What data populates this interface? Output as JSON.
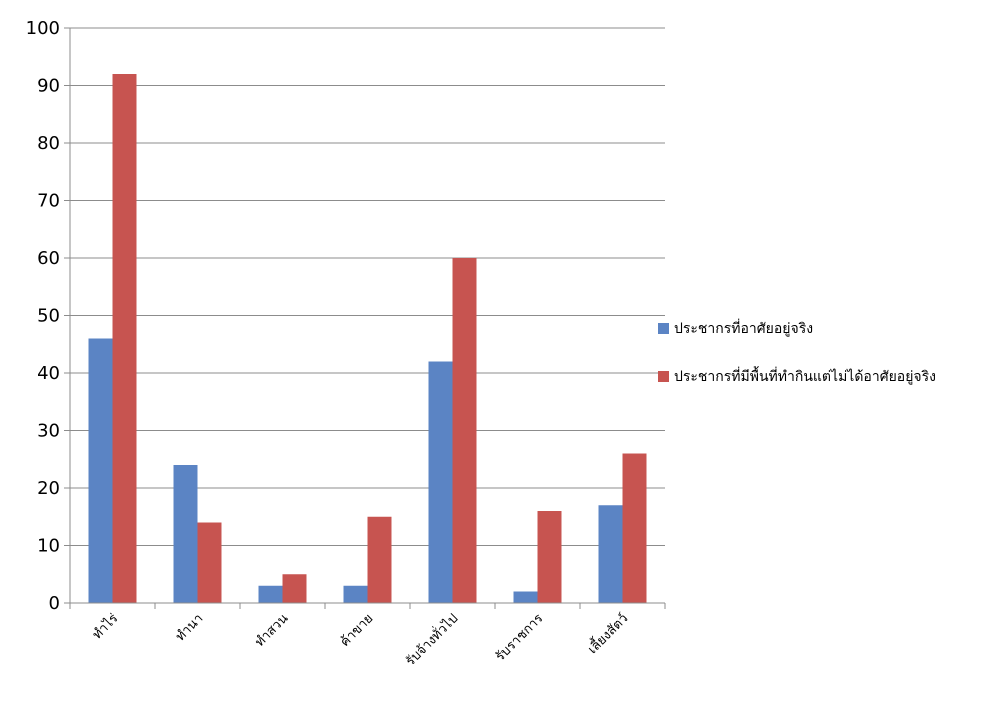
{
  "chart_data": {
    "type": "bar",
    "categories": [
      "ทำไร่",
      "ทำนา",
      "ทำสวน",
      "ค้าขาย",
      "รับจ้างทั่วไป",
      "รับราชการ",
      "เลี้ยงสัตว์"
    ],
    "series": [
      {
        "name": "ประชากรที่อาศัยอยู่จริง",
        "values": [
          46,
          24,
          3,
          3,
          42,
          2,
          17
        ],
        "color": "#5b84c4"
      },
      {
        "name": "ประชากรที่มีพื้นที่ทำกินแต่ไม่ได้อาศัยอยู่จริง",
        "values": [
          92,
          14,
          5,
          15,
          60,
          16,
          26
        ],
        "color": "#c75450"
      }
    ],
    "ylim": [
      0,
      100
    ],
    "yticks": [
      0,
      10,
      20,
      30,
      40,
      50,
      60,
      70,
      80,
      90,
      100
    ],
    "grid": true,
    "legend_position": "right"
  }
}
